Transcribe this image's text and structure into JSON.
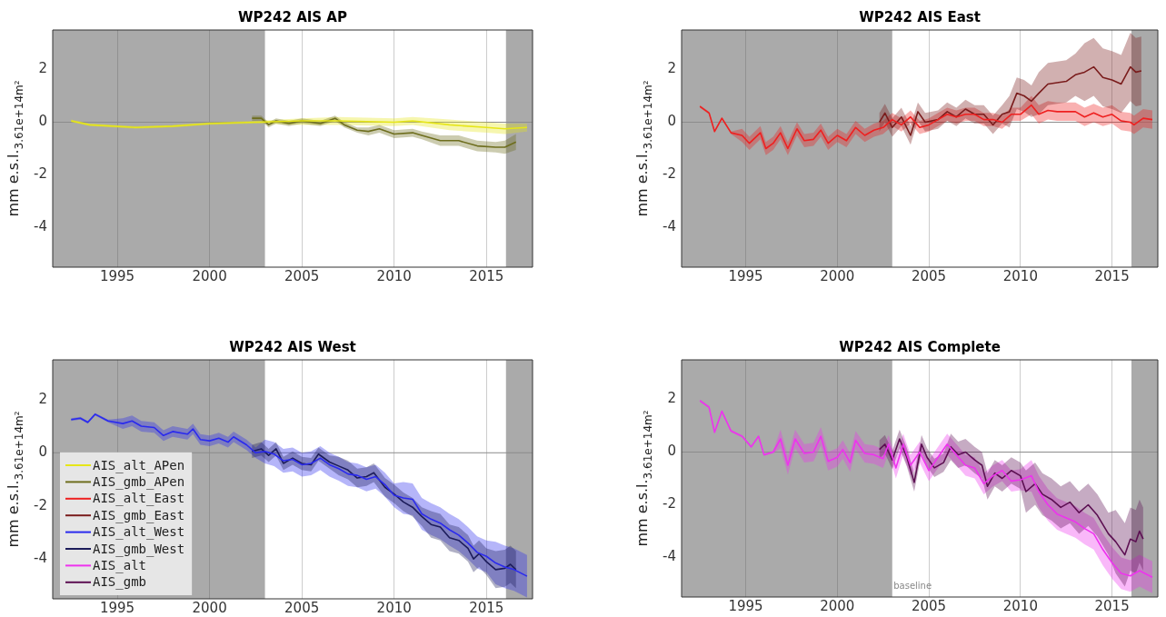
{
  "chart_data": [
    {
      "type": "line",
      "title": "WP242 AIS AP",
      "ylabel": "mm e.s.l.$_{3.61e+14m²}$",
      "xlim": [
        1991.5,
        2017.5
      ],
      "xticks": [
        1995,
        2000,
        2005,
        2010,
        2015
      ],
      "ylim": [
        -5.5,
        3.5
      ],
      "yticks": [
        -4,
        -2,
        0,
        2
      ],
      "grid": "x",
      "legend": false,
      "bands": [
        {
          "axis": "x",
          "from": 1991.5,
          "to": 2003,
          "color": "#aaaaaa"
        },
        {
          "axis": "x",
          "from": 2016.06,
          "to": 2017.5,
          "color": "#aaaaaa"
        }
      ],
      "ref_lines": [
        {
          "axis": "y",
          "value": 0,
          "color": "#8c8c8c"
        }
      ],
      "series": [
        {
          "name": "AIS_alt_APen",
          "color": "#e6e619",
          "x": [
            1992.5,
            1993.5,
            1996,
            1998,
            2000,
            2002.5,
            2005,
            2007,
            2010,
            2011,
            2013,
            2015,
            2016,
            2017.2
          ],
          "values": [
            0.05,
            -0.1,
            -0.2,
            -0.15,
            -0.05,
            0,
            0.05,
            0.05,
            0,
            0.05,
            -0.1,
            -0.2,
            -0.25,
            -0.2
          ],
          "lower": [
            0,
            -0.15,
            -0.25,
            -0.2,
            -0.1,
            -0.05,
            -0.1,
            -0.1,
            -0.15,
            -0.1,
            -0.3,
            -0.4,
            -0.45,
            -0.35
          ],
          "upper": [
            0.1,
            -0.05,
            -0.15,
            -0.1,
            0,
            0.05,
            0.15,
            0.2,
            0.15,
            0.2,
            0.1,
            0,
            -0.05,
            -0.05
          ]
        },
        {
          "name": "AIS_gmb_APen",
          "color": "#6e6e1e",
          "x": [
            2002.3,
            2002.8,
            2003.2,
            2003.6,
            2004.3,
            2005,
            2006,
            2006.8,
            2007.3,
            2008,
            2008.6,
            2009.2,
            2010,
            2011,
            2011.5,
            2012.5,
            2013.5,
            2014.5,
            2015.5,
            2016,
            2016.6
          ],
          "values": [
            0.15,
            0.15,
            -0.1,
            0.05,
            -0.05,
            0.05,
            -0.05,
            0.15,
            -0.1,
            -0.3,
            -0.35,
            -0.25,
            -0.45,
            -0.4,
            -0.5,
            -0.7,
            -0.7,
            -0.9,
            -0.95,
            -0.95,
            -0.75
          ],
          "lower": [
            0.05,
            0.05,
            -0.2,
            -0.05,
            -0.15,
            -0.05,
            -0.15,
            0.05,
            -0.2,
            -0.4,
            -0.5,
            -0.4,
            -0.6,
            -0.55,
            -0.65,
            -0.9,
            -0.9,
            -1.1,
            -1.15,
            -1.2,
            -1.05
          ],
          "upper": [
            0.25,
            0.25,
            0,
            0.15,
            0.05,
            0.15,
            0.05,
            0.25,
            0,
            -0.2,
            -0.2,
            -0.1,
            -0.3,
            -0.25,
            -0.35,
            -0.5,
            -0.5,
            -0.7,
            -0.75,
            -0.7,
            -0.45
          ]
        }
      ]
    },
    {
      "type": "line",
      "title": "WP242 AIS East",
      "ylabel": "mm e.s.l.$_{3.61e+14m²}$",
      "xlim": [
        1991.5,
        2017.5
      ],
      "xticks": [
        1995,
        2000,
        2005,
        2010,
        2015
      ],
      "ylim": [
        -5.5,
        3.5
      ],
      "yticks": [
        -4,
        -2,
        0,
        2
      ],
      "grid": "x",
      "legend": false,
      "bands": [
        {
          "axis": "x",
          "from": 1991.5,
          "to": 2003,
          "color": "#aaaaaa"
        },
        {
          "axis": "x",
          "from": 2016.06,
          "to": 2017.5,
          "color": "#aaaaaa"
        }
      ],
      "ref_lines": [
        {
          "axis": "y",
          "value": 0,
          "color": "#8c8c8c"
        }
      ],
      "series": [
        {
          "name": "AIS_alt_East",
          "color": "#ee2020",
          "x": [
            1992.5,
            1993,
            1993.3,
            1993.7,
            1994.2,
            1994.8,
            1995.2,
            1995.8,
            1996.1,
            1996.5,
            1996.9,
            1997.3,
            1997.8,
            1998.2,
            1998.7,
            1999.1,
            1999.5,
            2000,
            2000.5,
            2001,
            2001.5,
            2002,
            2002.5,
            2003,
            2003.5,
            2004,
            2004.5,
            2005,
            2005.5,
            2006,
            2006.5,
            2007,
            2007.5,
            2008,
            2008.5,
            2009,
            2009.5,
            2010,
            2010.6,
            2011,
            2011.5,
            2012,
            2013,
            2013.5,
            2014,
            2014.5,
            2015,
            2015.5,
            2016,
            2016.2,
            2016.7,
            2017.2
          ],
          "values": [
            0.6,
            0.35,
            -0.35,
            0.15,
            -0.4,
            -0.5,
            -0.8,
            -0.4,
            -1.0,
            -0.8,
            -0.4,
            -1.0,
            -0.25,
            -0.7,
            -0.65,
            -0.3,
            -0.8,
            -0.5,
            -0.7,
            -0.2,
            -0.5,
            -0.3,
            -0.2,
            0.1,
            -0.1,
            0.2,
            -0.2,
            -0.1,
            0.1,
            0.3,
            0.2,
            0.3,
            0.3,
            0.1,
            0.1,
            0,
            0.3,
            0.3,
            0.65,
            0.3,
            0.45,
            0.4,
            0.4,
            0.2,
            0.35,
            0.2,
            0.3,
            0.05,
            0,
            -0.1,
            0.15,
            0.1
          ],
          "lower": [
            0.55,
            0.3,
            -0.4,
            0.1,
            -0.45,
            -0.75,
            -1.05,
            -0.65,
            -1.25,
            -1.05,
            -0.65,
            -1.25,
            -0.5,
            -0.95,
            -0.9,
            -0.55,
            -1.05,
            -0.75,
            -0.95,
            -0.45,
            -0.75,
            -0.55,
            -0.45,
            -0.15,
            -0.35,
            -0.05,
            -0.45,
            -0.35,
            -0.15,
            0.05,
            -0.05,
            0.05,
            0.05,
            -0.15,
            -0.15,
            -0.25,
            0.05,
            0.05,
            0.3,
            -0.05,
            0.1,
            0.05,
            0.05,
            -0.15,
            0,
            -0.15,
            -0.05,
            -0.3,
            -0.35,
            -0.45,
            -0.2,
            -0.25
          ],
          "upper": [
            0.65,
            0.4,
            -0.3,
            0.2,
            -0.35,
            -0.25,
            -0.55,
            -0.15,
            -0.75,
            -0.55,
            -0.15,
            -0.75,
            0,
            -0.45,
            -0.4,
            -0.05,
            -0.55,
            -0.25,
            -0.45,
            0.05,
            -0.25,
            -0.05,
            0.05,
            0.35,
            0.15,
            0.45,
            0.05,
            0.15,
            0.35,
            0.55,
            0.45,
            0.55,
            0.55,
            0.35,
            0.35,
            0.25,
            0.55,
            0.55,
            1.0,
            0.65,
            0.8,
            0.75,
            0.75,
            0.55,
            0.7,
            0.55,
            0.65,
            0.4,
            0.35,
            0.25,
            0.5,
            0.45
          ]
        },
        {
          "name": "AIS_gmb_East",
          "color": "#7a1c1c",
          "x": [
            2002.3,
            2002.6,
            2003,
            2003.5,
            2004,
            2004.4,
            2004.8,
            2005.5,
            2006,
            2006.5,
            2007,
            2007.5,
            2008,
            2008.5,
            2009,
            2009.4,
            2009.8,
            2010.2,
            2010.6,
            2011,
            2011.5,
            2012,
            2012.5,
            2013,
            2013.5,
            2014,
            2014.5,
            2015,
            2015.5,
            2016,
            2016.3,
            2016.6
          ],
          "values": [
            0,
            0.35,
            -0.2,
            0.2,
            -0.5,
            0.4,
            0,
            0.1,
            0.4,
            0.2,
            0.5,
            0.3,
            0.3,
            -0.1,
            0.3,
            0.4,
            1.1,
            1.0,
            0.8,
            1.1,
            1.45,
            1.5,
            1.55,
            1.8,
            1.9,
            2.1,
            1.7,
            1.6,
            1.45,
            2.1,
            1.9,
            1.95
          ],
          "lower": [
            -0.35,
            0,
            -0.55,
            -0.15,
            -0.85,
            0.05,
            -0.35,
            -0.25,
            0.05,
            -0.15,
            0.15,
            -0.05,
            -0.05,
            -0.45,
            -0.05,
            -0.2,
            0.5,
            0.4,
            0.2,
            0.3,
            0.65,
            0.7,
            0.75,
            1.0,
            0.8,
            1.0,
            0.6,
            0.5,
            0.35,
            0.8,
            0.6,
            0.65
          ],
          "upper": [
            0.35,
            0.7,
            0.15,
            0.55,
            -0.15,
            0.75,
            0.35,
            0.45,
            0.75,
            0.55,
            0.85,
            0.65,
            0.65,
            0.25,
            0.65,
            1.0,
            1.7,
            1.6,
            1.4,
            1.9,
            2.25,
            2.3,
            2.35,
            2.6,
            3.0,
            3.2,
            2.8,
            2.7,
            2.55,
            3.4,
            3.2,
            3.25
          ]
        }
      ]
    },
    {
      "type": "line",
      "title": "WP242 AIS West",
      "ylabel": "mm e.s.l.$_{3.61e+14m²}$",
      "xlim": [
        1991.5,
        2017.5
      ],
      "xticks": [
        1995,
        2000,
        2005,
        2010,
        2015
      ],
      "ylim": [
        -5.5,
        3.5
      ],
      "yticks": [
        -4,
        -2,
        0,
        2
      ],
      "grid": "x",
      "legend": "bottom left",
      "bands": [
        {
          "axis": "x",
          "from": 1991.5,
          "to": 2003,
          "color": "#aaaaaa"
        },
        {
          "axis": "x",
          "from": 2016.06,
          "to": 2017.5,
          "color": "#aaaaaa"
        }
      ],
      "ref_lines": [
        {
          "axis": "y",
          "value": 0,
          "color": "#8c8c8c"
        }
      ],
      "series": [
        {
          "name": "AIS_alt_West",
          "color": "#2a2aee",
          "x": [
            1992.5,
            1993,
            1993.4,
            1993.8,
            1994.5,
            1995.3,
            1995.8,
            1996.3,
            1997,
            1997.5,
            1998,
            1998.8,
            1999.1,
            1999.5,
            2000,
            2000.5,
            2001,
            2001.3,
            2002,
            2002.5,
            2003,
            2003.5,
            2004,
            2004.5,
            2005,
            2005.5,
            2006,
            2006.5,
            2007,
            2007.5,
            2008,
            2008.5,
            2009,
            2009.5,
            2010,
            2010.5,
            2011,
            2011.5,
            2012,
            2012.5,
            2013,
            2013.5,
            2014,
            2014.5,
            2015,
            2015.5,
            2016,
            2016.5,
            2017.2
          ],
          "values": [
            1.25,
            1.3,
            1.15,
            1.45,
            1.2,
            1.1,
            1.2,
            1.0,
            0.95,
            0.65,
            0.8,
            0.7,
            0.9,
            0.5,
            0.45,
            0.55,
            0.4,
            0.6,
            0.3,
            0.0,
            0.05,
            -0.05,
            -0.3,
            -0.25,
            -0.45,
            -0.4,
            -0.2,
            -0.45,
            -0.6,
            -0.8,
            -0.85,
            -1.0,
            -0.9,
            -1.2,
            -1.6,
            -1.7,
            -1.75,
            -2.3,
            -2.5,
            -2.65,
            -2.9,
            -3.1,
            -3.4,
            -3.75,
            -3.9,
            -4.15,
            -4.3,
            -4.4,
            -4.65
          ],
          "lower": [
            1.2,
            1.25,
            1.1,
            1.4,
            1.15,
            0.9,
            1.0,
            0.8,
            0.75,
            0.45,
            0.6,
            0.5,
            0.7,
            0.3,
            0.25,
            0.35,
            0.2,
            0.4,
            0.1,
            -0.2,
            -0.4,
            -0.5,
            -0.75,
            -0.7,
            -0.9,
            -0.85,
            -0.65,
            -0.9,
            -1.05,
            -1.25,
            -1.3,
            -1.45,
            -1.35,
            -1.65,
            -2.05,
            -2.3,
            -2.35,
            -2.9,
            -3.1,
            -3.25,
            -3.5,
            -3.7,
            -4.0,
            -4.35,
            -4.5,
            -4.95,
            -5.1,
            -5.2,
            -5.45
          ],
          "upper": [
            1.3,
            1.35,
            1.2,
            1.5,
            1.25,
            1.3,
            1.4,
            1.2,
            1.15,
            0.85,
            1.0,
            0.9,
            1.1,
            0.7,
            0.65,
            0.75,
            0.6,
            0.8,
            0.5,
            0.2,
            0.5,
            0.4,
            0.15,
            0.2,
            0,
            0.05,
            0.25,
            0,
            -0.15,
            -0.35,
            -0.4,
            -0.55,
            -0.45,
            -0.75,
            -1.15,
            -1.1,
            -1.15,
            -1.7,
            -1.9,
            -2.05,
            -2.3,
            -2.5,
            -2.8,
            -3.15,
            -3.3,
            -3.35,
            -3.5,
            -3.6,
            -3.85
          ]
        },
        {
          "name": "AIS_gmb_West",
          "color": "#1c1c5a",
          "x": [
            2002.3,
            2002.8,
            2003.2,
            2003.6,
            2004,
            2004.5,
            2005,
            2005.5,
            2005.9,
            2006.5,
            2007,
            2007.5,
            2008,
            2008.5,
            2008.9,
            2009.5,
            2010,
            2010.5,
            2011,
            2011.5,
            2012,
            2012.5,
            2013,
            2013.5,
            2014,
            2014.3,
            2014.6,
            2015,
            2015.5,
            2016,
            2016.3,
            2016.6
          ],
          "values": [
            0.05,
            0.15,
            -0.1,
            0.15,
            -0.4,
            -0.2,
            -0.4,
            -0.45,
            -0.05,
            -0.35,
            -0.5,
            -0.65,
            -0.95,
            -0.9,
            -0.75,
            -1.3,
            -1.55,
            -1.85,
            -2.05,
            -2.4,
            -2.7,
            -2.8,
            -3.2,
            -3.3,
            -3.6,
            -4.0,
            -3.8,
            -4.1,
            -4.4,
            -4.35,
            -4.2,
            -4.4
          ],
          "lower": [
            -0.2,
            -0.1,
            -0.35,
            -0.1,
            -0.65,
            -0.45,
            -0.65,
            -0.7,
            -0.3,
            -0.6,
            -0.85,
            -1.0,
            -1.3,
            -1.25,
            -1.1,
            -1.65,
            -1.9,
            -2.2,
            -2.4,
            -2.75,
            -3.2,
            -3.3,
            -3.7,
            -3.8,
            -4.1,
            -4.5,
            -4.3,
            -4.6,
            -5.1,
            -5.05,
            -4.9,
            -5.1
          ],
          "upper": [
            0.3,
            0.4,
            0.15,
            0.4,
            -0.15,
            0.05,
            -0.15,
            -0.2,
            0.2,
            -0.1,
            -0.15,
            -0.3,
            -0.6,
            -0.55,
            -0.4,
            -0.95,
            -1.2,
            -1.5,
            -1.7,
            -2.05,
            -2.2,
            -2.3,
            -2.7,
            -2.8,
            -3.1,
            -3.5,
            -3.3,
            -3.6,
            -3.7,
            -3.65,
            -3.5,
            -3.7
          ]
        }
      ]
    },
    {
      "type": "line",
      "title": "WP242 AIS Complete",
      "ylabel": "mm e.s.l.$_{3.61e+14m²}$",
      "xlim": [
        1991.5,
        2017.5
      ],
      "xticks": [
        1995,
        2000,
        2005,
        2010,
        2015
      ],
      "ylim": [
        -5.5,
        3.5
      ],
      "yticks": [
        -4,
        -2,
        0,
        2
      ],
      "grid": "x",
      "legend": false,
      "bands": [
        {
          "axis": "x",
          "from": 1991.5,
          "to": 2003,
          "color": "#aaaaaa"
        },
        {
          "axis": "x",
          "from": 2016.06,
          "to": 2017.5,
          "color": "#aaaaaa"
        }
      ],
      "ref_lines": [
        {
          "axis": "y",
          "value": 0,
          "color": "#8c8c8c"
        }
      ],
      "annotations": [
        "baseline"
      ],
      "series": [
        {
          "name": "AIS_alt",
          "color": "#ee33ee",
          "x": [
            1992.5,
            1993,
            1993.3,
            1993.7,
            1994.2,
            1994.8,
            1995.3,
            1995.7,
            1996,
            1996.5,
            1996.9,
            1997.3,
            1997.7,
            1998.2,
            1998.7,
            1999.1,
            1999.5,
            2000,
            2000.3,
            2000.7,
            2001,
            2001.5,
            2002,
            2002.5,
            2002.8,
            2003.2,
            2003.6,
            2004,
            2004.5,
            2005,
            2005.5,
            2006,
            2006.5,
            2007,
            2007.5,
            2008,
            2008.5,
            2009,
            2009.5,
            2010,
            2010.6,
            2011,
            2011.5,
            2012,
            2012.5,
            2013,
            2013.5,
            2014,
            2014.5,
            2015,
            2015.5,
            2016,
            2016.5,
            2017.2
          ],
          "values": [
            1.95,
            1.7,
            0.75,
            1.55,
            0.8,
            0.6,
            0.2,
            0.6,
            -0.1,
            0.0,
            0.5,
            -0.5,
            0.5,
            -0.05,
            0.0,
            0.6,
            -0.35,
            -0.2,
            0.1,
            -0.4,
            0.45,
            -0.05,
            -0.1,
            -0.25,
            0.3,
            -0.6,
            0.3,
            -0.5,
            0.0,
            -0.7,
            -0.2,
            0.3,
            -0.1,
            -0.5,
            -0.6,
            -1.2,
            -0.9,
            -0.7,
            -1.1,
            -1.05,
            -0.9,
            -1.5,
            -2.0,
            -2.35,
            -2.5,
            -2.65,
            -2.9,
            -3.1,
            -3.7,
            -4.2,
            -4.6,
            -4.7,
            -4.5,
            -4.75
          ],
          "lower": [
            1.9,
            1.65,
            0.7,
            1.5,
            0.75,
            0.55,
            0.15,
            0.55,
            -0.15,
            -0.05,
            0.15,
            -0.85,
            0.15,
            -0.4,
            -0.35,
            0.25,
            -0.7,
            -0.55,
            -0.25,
            -0.75,
            0.1,
            -0.4,
            -0.45,
            -0.6,
            -0.05,
            -1.0,
            -0.1,
            -0.9,
            -0.4,
            -1.1,
            -0.6,
            -0.1,
            -0.5,
            -0.9,
            -1.0,
            -1.6,
            -1.3,
            -1.1,
            -1.5,
            -1.45,
            -1.5,
            -2.1,
            -2.6,
            -2.95,
            -3.1,
            -3.25,
            -3.5,
            -3.7,
            -4.3,
            -4.8,
            -5.2,
            -5.3,
            -5.1,
            -5.35
          ],
          "upper": [
            2.0,
            1.75,
            0.8,
            1.6,
            0.85,
            0.65,
            0.25,
            0.65,
            -0.05,
            0.05,
            0.85,
            -0.15,
            0.85,
            0.3,
            0.35,
            0.95,
            0,
            0.15,
            0.45,
            -0.05,
            0.8,
            0.3,
            0.25,
            0.1,
            0.65,
            -0.2,
            0.7,
            -0.1,
            0.4,
            -0.3,
            0.2,
            0.7,
            0.3,
            -0.1,
            -0.2,
            -0.8,
            -0.5,
            -0.3,
            -0.7,
            -0.65,
            -0.3,
            -0.9,
            -1.4,
            -1.75,
            -1.9,
            -2.05,
            -2.3,
            -2.5,
            -3.1,
            -3.6,
            -4.0,
            -4.1,
            -3.9,
            -4.15
          ]
        },
        {
          "name": "AIS_gmb",
          "color": "#5c0f52",
          "x": [
            2002.3,
            2002.6,
            2003,
            2003.4,
            2003.8,
            2004.2,
            2004.6,
            2004.9,
            2005.3,
            2005.8,
            2006.2,
            2006.6,
            2007,
            2007.5,
            2007.9,
            2008.2,
            2008.6,
            2009,
            2009.5,
            2010,
            2010.3,
            2010.8,
            2011.2,
            2011.7,
            2012.2,
            2012.7,
            2013.2,
            2013.7,
            2014.2,
            2014.8,
            2015.2,
            2015.7,
            2016,
            2016.3,
            2016.5,
            2016.7
          ],
          "values": [
            0.1,
            0.3,
            -0.3,
            0.5,
            -0.2,
            -1.15,
            0.3,
            -0.2,
            -0.6,
            -0.4,
            0.2,
            -0.1,
            0.0,
            -0.3,
            -0.5,
            -1.3,
            -0.8,
            -1.0,
            -0.7,
            -0.9,
            -1.5,
            -1.2,
            -1.6,
            -1.8,
            -2.1,
            -1.9,
            -2.3,
            -2.0,
            -2.4,
            -3.1,
            -3.4,
            -3.9,
            -3.3,
            -3.4,
            -3.0,
            -3.3
          ],
          "lower": [
            -0.25,
            -0.05,
            -0.65,
            0.15,
            -0.55,
            -1.5,
            -0.05,
            -0.55,
            -0.95,
            -0.75,
            -0.3,
            -0.6,
            -0.5,
            -0.8,
            -1.0,
            -1.8,
            -1.3,
            -1.5,
            -1.2,
            -1.4,
            -2.3,
            -2.0,
            -2.4,
            -2.6,
            -2.9,
            -2.7,
            -3.1,
            -2.8,
            -3.2,
            -3.9,
            -4.6,
            -5.1,
            -4.5,
            -4.6,
            -4.2,
            -4.5
          ],
          "upper": [
            0.45,
            0.65,
            0.05,
            0.85,
            0.15,
            -0.8,
            0.65,
            0.15,
            -0.25,
            -0.05,
            0.7,
            0.4,
            0.5,
            0.2,
            0,
            -0.8,
            -0.3,
            -0.5,
            -0.2,
            -0.4,
            -0.7,
            -0.4,
            -0.8,
            -1.0,
            -1.3,
            -1.1,
            -1.5,
            -1.2,
            -1.6,
            -2.3,
            -2.2,
            -2.7,
            -2.1,
            -2.2,
            -1.8,
            -2.1
          ]
        }
      ]
    }
  ]
}
